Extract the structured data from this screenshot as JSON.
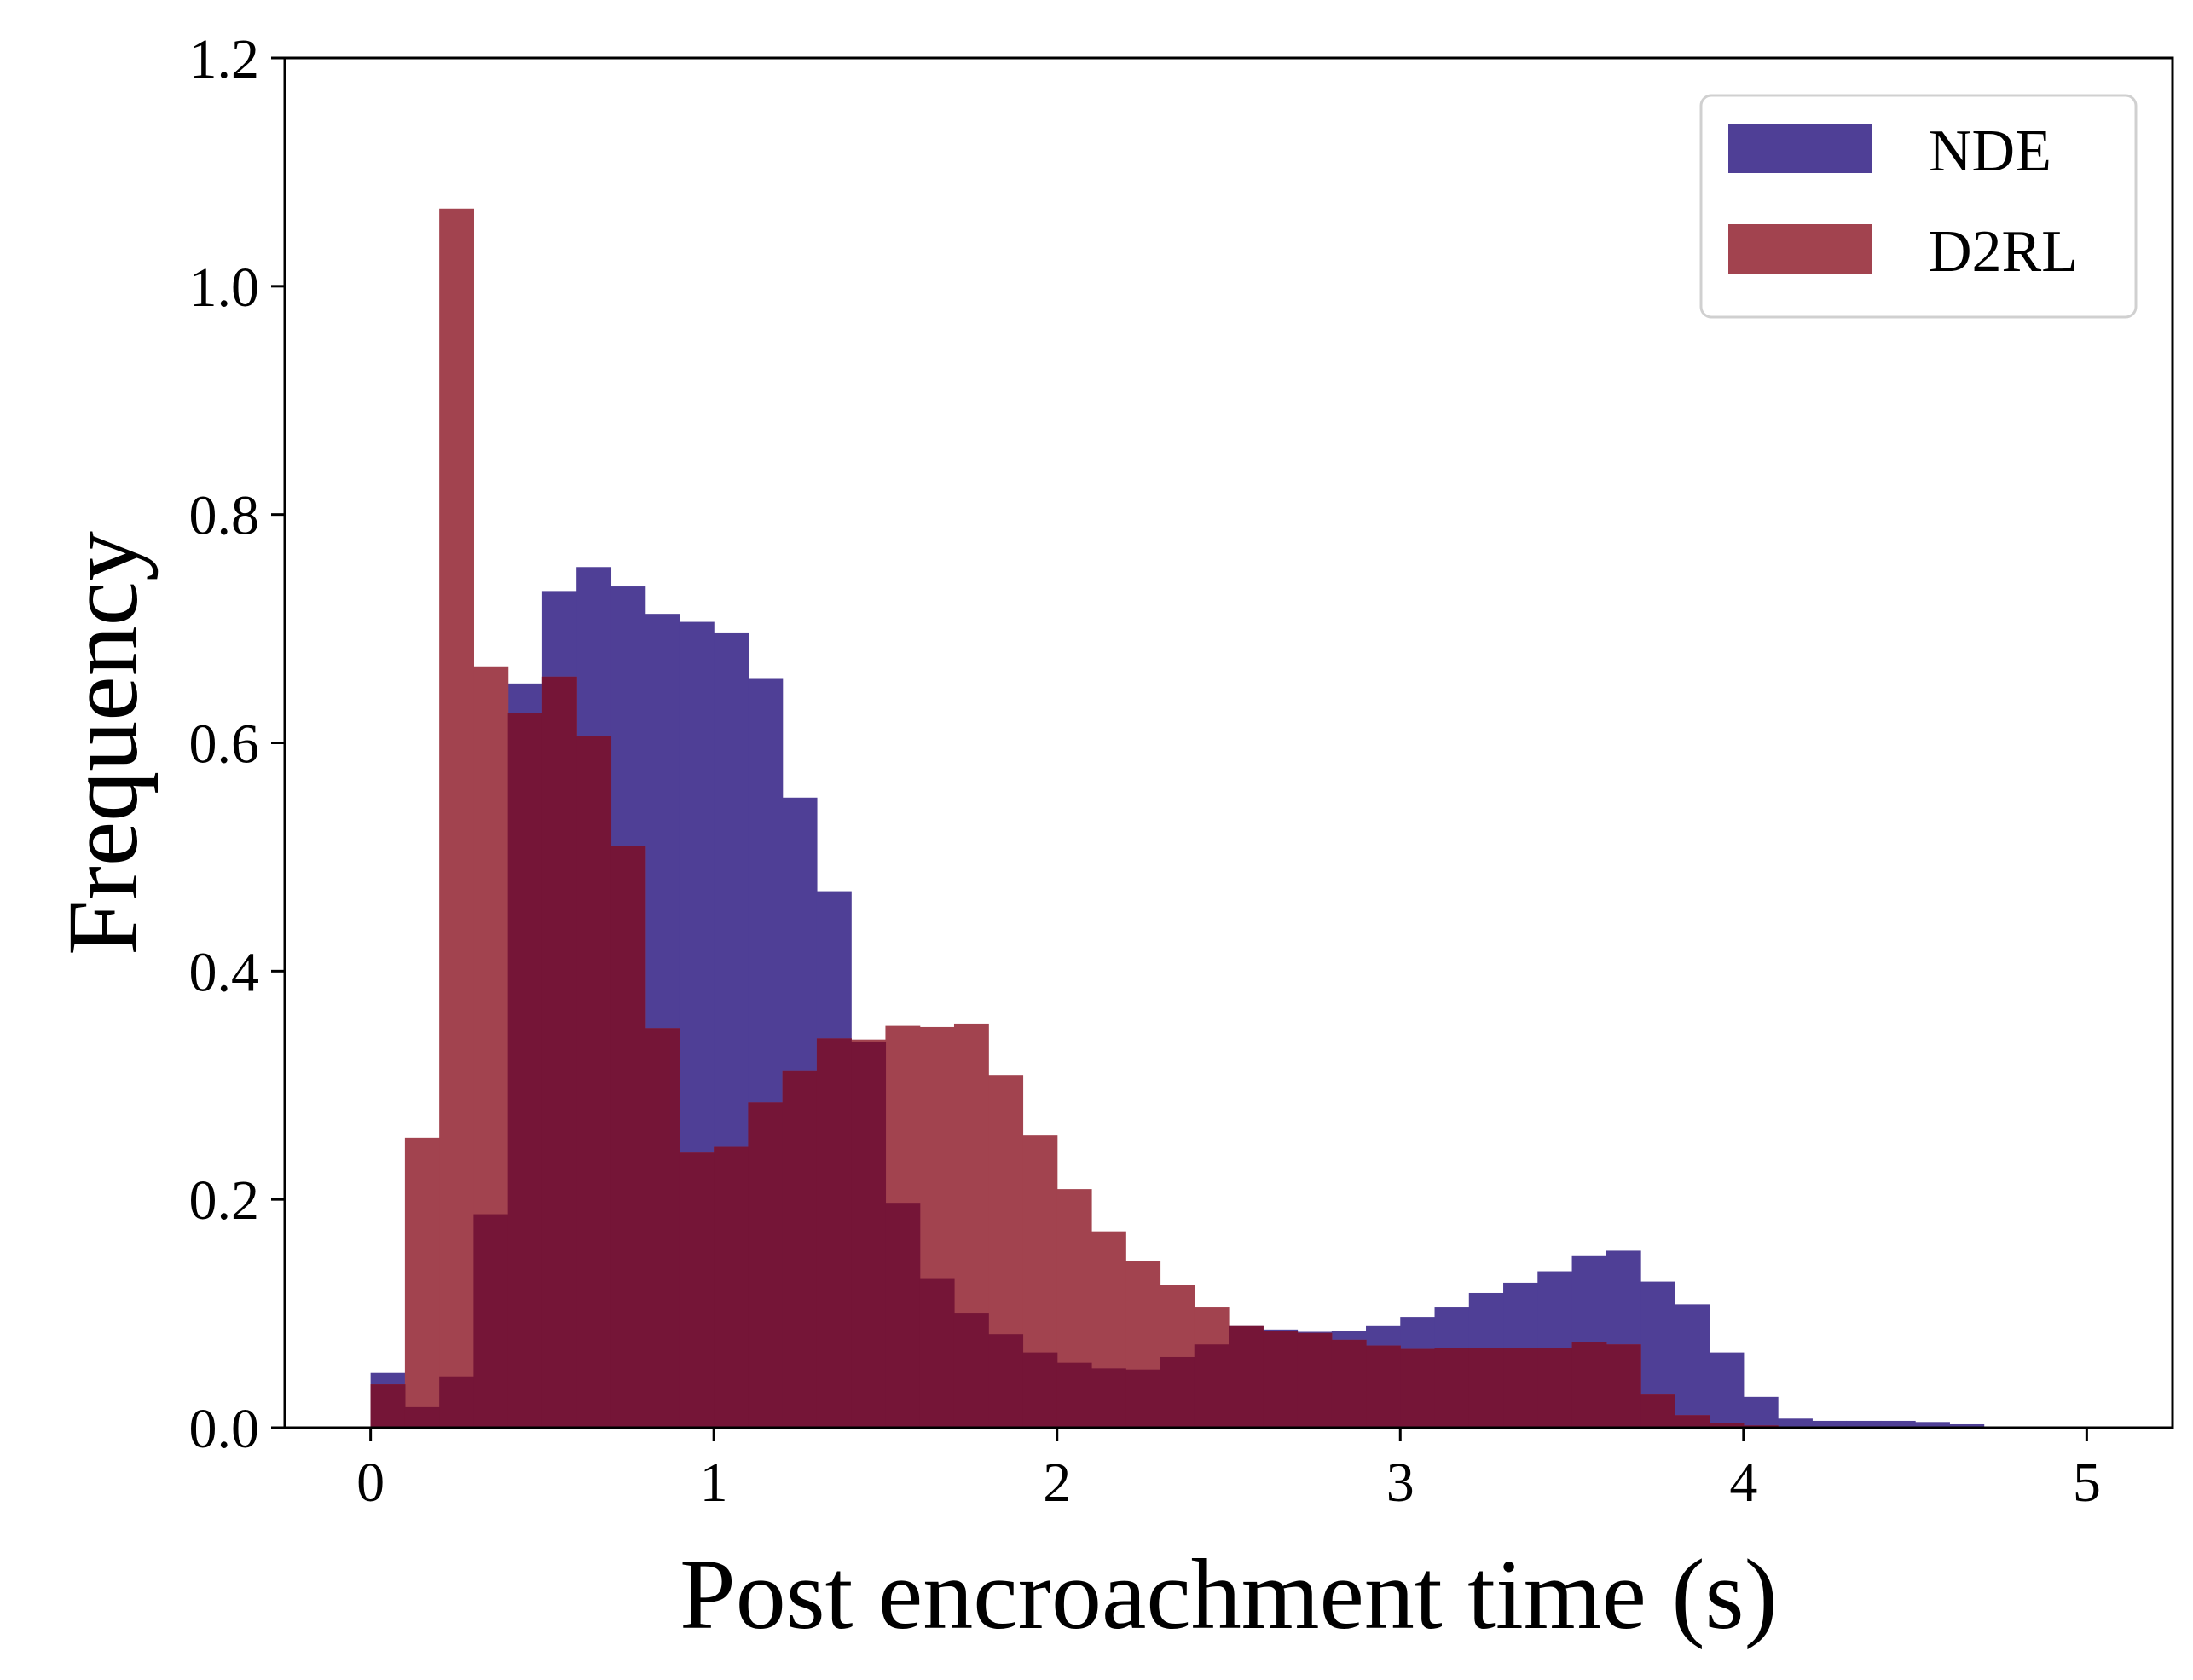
{
  "chart_data": {
    "type": "bar",
    "subtype": "overlapping-histogram",
    "xlabel": "Post encroachment time (s)",
    "ylabel": "Frequency",
    "xlim": [
      -0.25,
      5.25
    ],
    "ylim": [
      0.0,
      1.2
    ],
    "x_ticks": [
      0,
      1,
      2,
      3,
      4,
      5
    ],
    "x_tick_labels": [
      "0",
      "1",
      "2",
      "3",
      "4",
      "5"
    ],
    "y_ticks": [
      0.0,
      0.2,
      0.4,
      0.6,
      0.8,
      1.0,
      1.2
    ],
    "y_tick_labels": [
      "0.0",
      "0.2",
      "0.4",
      "0.6",
      "0.8",
      "1.0",
      "1.2"
    ],
    "grid": false,
    "legend_position": "top-right",
    "bin_width": 0.1,
    "bin_start": 0.0,
    "series": [
      {
        "name": "NDE",
        "color": "#4f3f96",
        "values": [
          0.048,
          0.018,
          0.045,
          0.187,
          0.652,
          0.733,
          0.754,
          0.737,
          0.713,
          0.706,
          0.696,
          0.656,
          0.552,
          0.47,
          0.338,
          0.197,
          0.131,
          0.1,
          0.082,
          0.066,
          0.057,
          0.052,
          0.051,
          0.062,
          0.073,
          0.089,
          0.086,
          0.084,
          0.085,
          0.089,
          0.097,
          0.106,
          0.118,
          0.127,
          0.137,
          0.151,
          0.155,
          0.128,
          0.108,
          0.066,
          0.027,
          0.008,
          0.006,
          0.006,
          0.006,
          0.005,
          0.003,
          0.001,
          0.001,
          0.0
        ]
      },
      {
        "name": "D2RL",
        "color": "#a2434f",
        "values": [
          0.038,
          0.254,
          1.068,
          0.667,
          0.626,
          0.658,
          0.606,
          0.51,
          0.35,
          0.241,
          0.246,
          0.285,
          0.313,
          0.341,
          0.34,
          0.352,
          0.351,
          0.354,
          0.309,
          0.256,
          0.209,
          0.172,
          0.146,
          0.125,
          0.106,
          0.089,
          0.085,
          0.083,
          0.077,
          0.072,
          0.069,
          0.07,
          0.07,
          0.07,
          0.07,
          0.075,
          0.073,
          0.029,
          0.011,
          0.004,
          0.002,
          0.001,
          0.0,
          0.0,
          0.0,
          0.0,
          0.0,
          0.0,
          0.0,
          0.0
        ]
      }
    ],
    "overlap_color": "#751537"
  }
}
